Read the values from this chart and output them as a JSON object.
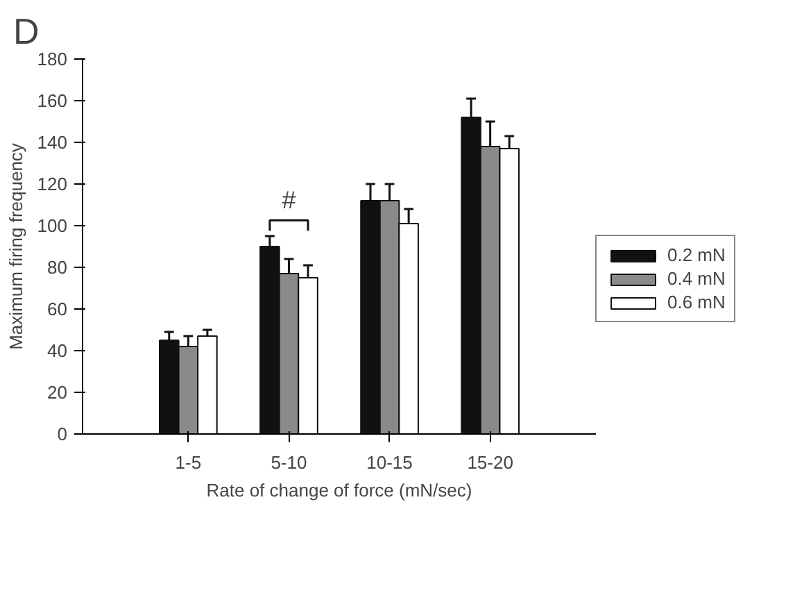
{
  "chart_data": {
    "type": "bar",
    "xlabel": "Rate of change of force (mN/sec)",
    "ylabel": "Maximum firing frequency",
    "categories": [
      "1-5",
      "5-10",
      "10-15",
      "15-20"
    ],
    "series": [
      {
        "name": "0.2 mN",
        "color": "#111111",
        "values": [
          45,
          90,
          112,
          152
        ],
        "errors": [
          4,
          5,
          8,
          9
        ]
      },
      {
        "name": "0.4 mN",
        "color": "#8a8a8a",
        "values": [
          42,
          77,
          112,
          138
        ],
        "errors": [
          5,
          7,
          8,
          12
        ]
      },
      {
        "name": "0.6 mN",
        "color": "#ffffff",
        "values": [
          47,
          75,
          101,
          137
        ],
        "errors": [
          3,
          6,
          7,
          6
        ]
      }
    ],
    "ylim": [
      0,
      180
    ],
    "yticks": [
      0,
      20,
      40,
      60,
      80,
      100,
      120,
      140,
      160,
      180
    ],
    "annotations": [
      "D",
      "#"
    ],
    "legend": "right"
  }
}
